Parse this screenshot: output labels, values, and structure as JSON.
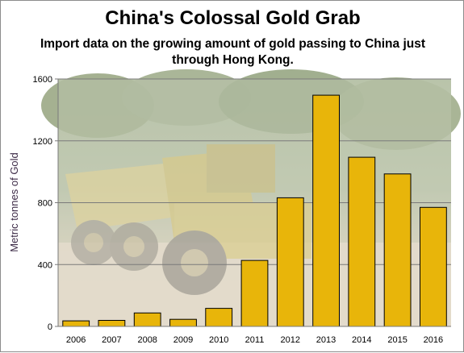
{
  "title": "China's Colossal Gold Grab",
  "subtitle": "Import data on the growing amount of gold passing to China just through Hong Kong.",
  "colors": {
    "bar_fill": "#e8b50a",
    "bar_stroke": "#000000",
    "grid": "#7a7a7a"
  },
  "chart_data": {
    "type": "bar",
    "title": "China's Colossal Gold Grab",
    "subtitle": "Import data on the growing amount of gold passing to China just through Hong Kong.",
    "ylabel": "Metric tonnes of Gold",
    "xlabel": "",
    "categories": [
      "2006",
      "2007",
      "2008",
      "2009",
      "2010",
      "2011",
      "2012",
      "2013",
      "2014",
      "2015",
      "2016"
    ],
    "values": [
      36,
      39,
      87,
      46,
      117,
      427,
      832,
      1495,
      1094,
      986,
      770
    ],
    "ylim": [
      0,
      1600
    ],
    "yticks": [
      "0",
      "400",
      "800",
      "1200",
      "1600"
    ],
    "grid": true,
    "legend": "none",
    "background": "photo-of-dump-truck"
  }
}
